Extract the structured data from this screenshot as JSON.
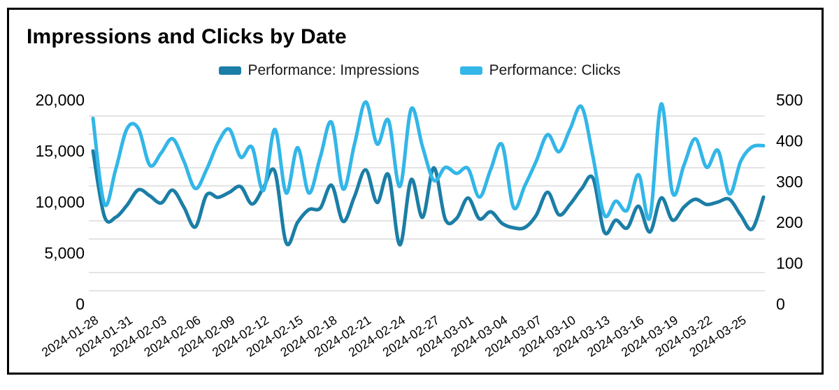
{
  "title": "Impressions and Clicks by Date",
  "legend": {
    "items": [
      {
        "label": "Performance: Impressions",
        "color": "#1b7ea6"
      },
      {
        "label": "Performance: Clicks",
        "color": "#33b6e8"
      }
    ]
  },
  "chart_data": {
    "type": "line",
    "title": "Impressions and Clicks by Date",
    "grid": true,
    "legend_position": "top",
    "x_label_every": 3,
    "x": [
      "2024-01-28",
      "2024-01-29",
      "2024-01-30",
      "2024-01-31",
      "2024-02-01",
      "2024-02-02",
      "2024-02-03",
      "2024-02-04",
      "2024-02-05",
      "2024-02-06",
      "2024-02-07",
      "2024-02-08",
      "2024-02-09",
      "2024-02-10",
      "2024-02-11",
      "2024-02-12",
      "2024-02-13",
      "2024-02-14",
      "2024-02-15",
      "2024-02-16",
      "2024-02-17",
      "2024-02-18",
      "2024-02-19",
      "2024-02-20",
      "2024-02-21",
      "2024-02-22",
      "2024-02-23",
      "2024-02-24",
      "2024-02-25",
      "2024-02-26",
      "2024-02-27",
      "2024-02-28",
      "2024-02-29",
      "2024-03-01",
      "2024-03-02",
      "2024-03-03",
      "2024-03-04",
      "2024-03-05",
      "2024-03-06",
      "2024-03-07",
      "2024-03-08",
      "2024-03-09",
      "2024-03-10",
      "2024-03-11",
      "2024-03-12",
      "2024-03-13",
      "2024-03-14",
      "2024-03-15",
      "2024-03-16",
      "2024-03-17",
      "2024-03-18",
      "2024-03-19",
      "2024-03-20",
      "2024-03-21",
      "2024-03-22",
      "2024-03-23",
      "2024-03-24",
      "2024-03-25",
      "2024-03-26",
      "2024-03-27"
    ],
    "left_axis": {
      "ticks": [
        0,
        5000,
        10000,
        15000,
        20000
      ],
      "range": [
        0,
        20000
      ]
    },
    "right_axis": {
      "ticks": [
        0,
        100,
        200,
        300,
        400,
        500
      ],
      "range": [
        0,
        500
      ]
    },
    "series": [
      {
        "name": "Performance: Impressions",
        "key": "impressions",
        "axis": "left",
        "color": "#1b7ea6",
        "values": [
          15000,
          8600,
          8500,
          9700,
          11200,
          10600,
          9900,
          11160,
          9500,
          7550,
          10700,
          10450,
          10950,
          11500,
          9800,
          11400,
          13000,
          6000,
          8000,
          9250,
          9400,
          11640,
          8100,
          10500,
          13150,
          9950,
          12670,
          5800,
          12190,
          8500,
          13350,
          8300,
          8400,
          10400,
          8350,
          9040,
          7900,
          7470,
          7500,
          8700,
          10960,
          8750,
          9800,
          11300,
          12330,
          7050,
          8220,
          7450,
          9590,
          7060,
          10400,
          8220,
          9500,
          10270,
          9750,
          10000,
          10270,
          8700,
          7350,
          10480
        ]
      },
      {
        "name": "Performance: Clicks",
        "key": "clicks",
        "axis": "right",
        "color": "#33b6e8",
        "values": [
          455,
          245,
          330,
          430,
          430,
          340,
          370,
          405,
          350,
          283,
          330,
          395,
          428,
          360,
          384,
          278,
          428,
          272,
          383,
          272,
          360,
          445,
          282,
          390,
          495,
          392,
          450,
          288,
          478,
          385,
          303,
          335,
          320,
          332,
          262,
          330,
          390,
          237,
          290,
          350,
          415,
          373,
          430,
          483,
          360,
          218,
          252,
          230,
          317,
          212,
          490,
          272,
          340,
          405,
          335,
          376,
          270,
          350,
          385,
          388
        ]
      }
    ]
  }
}
